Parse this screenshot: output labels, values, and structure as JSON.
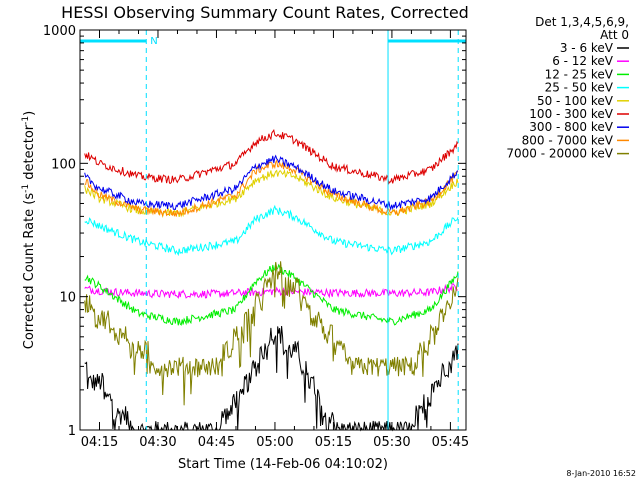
{
  "colors": {
    "background": "#ffffff",
    "axis": "#000000",
    "obs_marker": "#00e0ff",
    "series": [
      "#000000",
      "#ff00ff",
      "#00ee00",
      "#00ffff",
      "#e0d000",
      "#dd0000",
      "#0000ee",
      "#ff8800",
      "#808000"
    ]
  },
  "legend": {
    "header1": "Det 1,3,4,5,6,9,",
    "header2": "Att 0",
    "placement": "top-right, outside plot"
  },
  "timestamp": "8-Jan-2010 16:52",
  "chart_data": {
    "type": "line",
    "title": "HESSI Observing Summary Count Rates, Corrected",
    "xlabel": "Start Time (14-Feb-06 04:10:02)",
    "ylabel_main": "Corrected Count Rate (s",
    "ylabel_sup1": "-1",
    "ylabel_mid": " detector",
    "ylabel_sup2": "-1",
    "ylabel_end": ")",
    "y_scale": "log",
    "ylim": [
      1,
      1000
    ],
    "xlim": [
      "04:10",
      "05:49"
    ],
    "x_ticks": [
      "04:15",
      "04:30",
      "04:45",
      "05:00",
      "05:15",
      "05:30",
      "05:45"
    ],
    "y_ticks": [
      "1",
      "10",
      "100",
      "1000"
    ],
    "markers": {
      "night_end": "04:27",
      "night_start": "05:29",
      "saa_label": "N",
      "dashed_lines": [
        "04:27",
        "05:47"
      ],
      "solid_lines": [
        "05:29"
      ]
    },
    "series": [
      {
        "name": "3 - 6 keV",
        "shape": "stairs",
        "points": [
          [
            "04:10",
            3
          ],
          [
            "04:16",
            2
          ],
          [
            "04:20",
            1.3
          ],
          [
            "04:25",
            1
          ],
          [
            "04:45",
            1
          ],
          [
            "04:52",
            2
          ],
          [
            "04:58",
            4.5
          ],
          [
            "05:00",
            5
          ],
          [
            "05:05",
            4
          ],
          [
            "05:12",
            1.5
          ],
          [
            "05:17",
            1
          ],
          [
            "05:35",
            1
          ],
          [
            "05:40",
            2
          ],
          [
            "05:47",
            4
          ]
        ]
      },
      {
        "name": "6 - 12 keV",
        "shape": "flat",
        "points": [
          [
            "04:10",
            11.5
          ],
          [
            "04:20",
            10.8
          ],
          [
            "04:30",
            10.5
          ],
          [
            "04:45",
            10.5
          ],
          [
            "05:00",
            11
          ],
          [
            "05:15",
            10.7
          ],
          [
            "05:30",
            10.6
          ],
          [
            "05:40",
            10.8
          ],
          [
            "05:47",
            12
          ]
        ]
      },
      {
        "name": "12 - 25 keV",
        "shape": "hump",
        "points": [
          [
            "04:10",
            15
          ],
          [
            "04:15",
            12
          ],
          [
            "04:25",
            7.5
          ],
          [
            "04:35",
            6.5
          ],
          [
            "04:50",
            8
          ],
          [
            "04:55",
            13
          ],
          [
            "05:00",
            17
          ],
          [
            "05:05",
            14
          ],
          [
            "05:15",
            8
          ],
          [
            "05:30",
            6.5
          ],
          [
            "05:40",
            8
          ],
          [
            "05:47",
            15
          ]
        ]
      },
      {
        "name": "25 - 50 keV",
        "shape": "hump",
        "points": [
          [
            "04:10",
            40
          ],
          [
            "04:15",
            34
          ],
          [
            "04:25",
            26
          ],
          [
            "04:35",
            22
          ],
          [
            "04:50",
            26
          ],
          [
            "04:55",
            38
          ],
          [
            "05:00",
            45
          ],
          [
            "05:05",
            40
          ],
          [
            "05:15",
            26
          ],
          [
            "05:30",
            22
          ],
          [
            "05:40",
            26
          ],
          [
            "05:47",
            40
          ]
        ]
      },
      {
        "name": "50 - 100 keV",
        "shape": "hump",
        "points": [
          [
            "04:10",
            68
          ],
          [
            "04:15",
            55
          ],
          [
            "04:25",
            44
          ],
          [
            "04:35",
            42
          ],
          [
            "04:50",
            55
          ],
          [
            "04:55",
            75
          ],
          [
            "05:00",
            85
          ],
          [
            "05:05",
            80
          ],
          [
            "05:15",
            55
          ],
          [
            "05:30",
            42
          ],
          [
            "05:40",
            50
          ],
          [
            "05:47",
            75
          ]
        ]
      },
      {
        "name": "100 - 300 keV",
        "shape": "hump",
        "points": [
          [
            "04:10",
            125
          ],
          [
            "04:15",
            100
          ],
          [
            "04:25",
            80
          ],
          [
            "04:35",
            75
          ],
          [
            "04:50",
            100
          ],
          [
            "04:55",
            145
          ],
          [
            "05:00",
            168
          ],
          [
            "05:05",
            150
          ],
          [
            "05:15",
            95
          ],
          [
            "05:30",
            75
          ],
          [
            "05:40",
            90
          ],
          [
            "05:47",
            140
          ]
        ]
      },
      {
        "name": "300 - 800 keV",
        "shape": "hump",
        "points": [
          [
            "04:10",
            85
          ],
          [
            "04:15",
            65
          ],
          [
            "04:25",
            50
          ],
          [
            "04:35",
            48
          ],
          [
            "04:50",
            65
          ],
          [
            "04:55",
            95
          ],
          [
            "05:00",
            108
          ],
          [
            "05:05",
            95
          ],
          [
            "05:15",
            62
          ],
          [
            "05:30",
            48
          ],
          [
            "05:40",
            55
          ],
          [
            "05:47",
            88
          ]
        ]
      },
      {
        "name": "800 - 7000 keV",
        "shape": "hump",
        "points": [
          [
            "04:10",
            80
          ],
          [
            "04:15",
            58
          ],
          [
            "04:25",
            45
          ],
          [
            "04:35",
            42
          ],
          [
            "04:50",
            58
          ],
          [
            "04:55",
            88
          ],
          [
            "05:00",
            100
          ],
          [
            "05:05",
            90
          ],
          [
            "05:15",
            58
          ],
          [
            "05:30",
            42
          ],
          [
            "05:40",
            52
          ],
          [
            "05:47",
            85
          ]
        ]
      },
      {
        "name": "7000 - 20000 keV",
        "shape": "stairs",
        "points": [
          [
            "04:10",
            11
          ],
          [
            "04:15",
            7
          ],
          [
            "04:25",
            4
          ],
          [
            "04:30",
            3
          ],
          [
            "04:45",
            3
          ],
          [
            "04:52",
            6
          ],
          [
            "04:58",
            12
          ],
          [
            "05:00",
            15
          ],
          [
            "05:05",
            12
          ],
          [
            "05:12",
            6
          ],
          [
            "05:20",
            3
          ],
          [
            "05:35",
            3
          ],
          [
            "05:42",
            6
          ],
          [
            "05:47",
            13
          ]
        ]
      }
    ]
  }
}
